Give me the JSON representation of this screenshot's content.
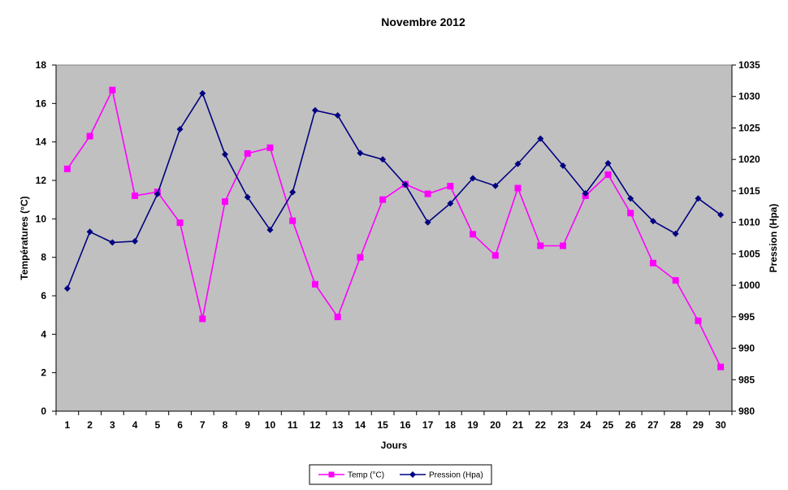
{
  "chart_data": {
    "type": "line",
    "title": "Novembre 2012",
    "xlabel": "Jours",
    "ylabel_left": "Températures (°C)",
    "ylabel_right": "Pression (Hpa)",
    "x": [
      1,
      2,
      3,
      4,
      5,
      6,
      7,
      8,
      9,
      10,
      11,
      12,
      13,
      14,
      15,
      16,
      17,
      18,
      19,
      20,
      21,
      22,
      23,
      24,
      25,
      26,
      27,
      28,
      29,
      30
    ],
    "ylim_left": [
      0,
      18
    ],
    "yticks_left": [
      0,
      2,
      4,
      6,
      8,
      10,
      12,
      14,
      16,
      18
    ],
    "ylim_right": [
      980,
      1035
    ],
    "yticks_right": [
      980,
      985,
      990,
      995,
      1000,
      1005,
      1010,
      1015,
      1020,
      1025,
      1030,
      1035
    ],
    "grid": false,
    "legend_position": "bottom",
    "series": [
      {
        "name": "Temp (°C)",
        "axis": "left",
        "color": "#ff00ff",
        "marker": "square",
        "values": [
          12.6,
          14.3,
          16.7,
          11.2,
          11.4,
          9.8,
          4.8,
          10.9,
          13.4,
          13.7,
          9.9,
          6.6,
          4.9,
          8.0,
          11.0,
          11.8,
          11.3,
          11.7,
          9.2,
          8.1,
          11.6,
          8.6,
          8.6,
          11.2,
          12.3,
          10.3,
          7.7,
          6.8,
          4.7,
          2.3
        ]
      },
      {
        "name": "Pression (Hpa)",
        "axis": "right",
        "color": "#000080",
        "marker": "diamond",
        "values": [
          999.5,
          1008.5,
          1006.8,
          1007.0,
          1014.5,
          1024.8,
          1030.5,
          1020.8,
          1014.0,
          1008.8,
          1014.8,
          1027.8,
          1027.0,
          1021.0,
          1020.0,
          1016.0,
          1010.0,
          1013.0,
          1017.0,
          1015.8,
          1019.3,
          1023.3,
          1019.0,
          1014.6,
          1019.4,
          1013.8,
          1010.2,
          1008.2,
          1013.8,
          1011.2
        ]
      }
    ]
  }
}
